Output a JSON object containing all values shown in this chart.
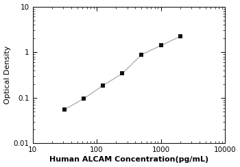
{
  "x": [
    31.25,
    62.5,
    125,
    250,
    500,
    1000,
    2000
  ],
  "y": [
    0.055,
    0.095,
    0.185,
    0.34,
    0.88,
    1.4,
    2.2
  ],
  "xlim": [
    10,
    10000
  ],
  "ylim": [
    0.01,
    10
  ],
  "xlabel": "Human ALCAM Concentration(pg/mL)",
  "ylabel": "Optical Density",
  "line_color": "#b0b0b0",
  "marker_color": "#111111",
  "marker": "s",
  "marker_size": 5,
  "line_width": 1.0,
  "bg_color": "#ffffff",
  "xlabel_fontsize": 8,
  "ylabel_fontsize": 8,
  "tick_fontsize": 7.5,
  "xlabel_bold": true
}
